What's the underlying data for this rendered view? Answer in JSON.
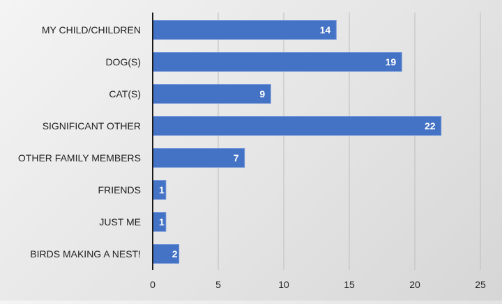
{
  "chart_data": {
    "type": "bar",
    "orientation": "horizontal",
    "title": "",
    "xlabel": "",
    "ylabel": "",
    "categories": [
      "MY CHILD/CHILDREN",
      "DOG(S)",
      "CAT(S)",
      "SIGNIFICANT OTHER",
      "OTHER FAMILY MEMBERS",
      "FRIENDS",
      "JUST ME",
      "BIRDS MAKING A NEST!"
    ],
    "values": [
      14,
      19,
      9,
      22,
      7,
      1,
      1,
      2
    ],
    "xlim": [
      0,
      25
    ],
    "xticks": [
      "0",
      "5",
      "10",
      "15",
      "20",
      "25"
    ],
    "grid": "vertical",
    "legend": "none",
    "data_labels": "inside-end",
    "colors": {
      "bar": "#4472c4",
      "bar_border": "#6a8fd4",
      "grid": "#bdbdbd",
      "axis": "#1a1a1a",
      "label_text": "#222222",
      "value_text": "#ffffff"
    }
  }
}
